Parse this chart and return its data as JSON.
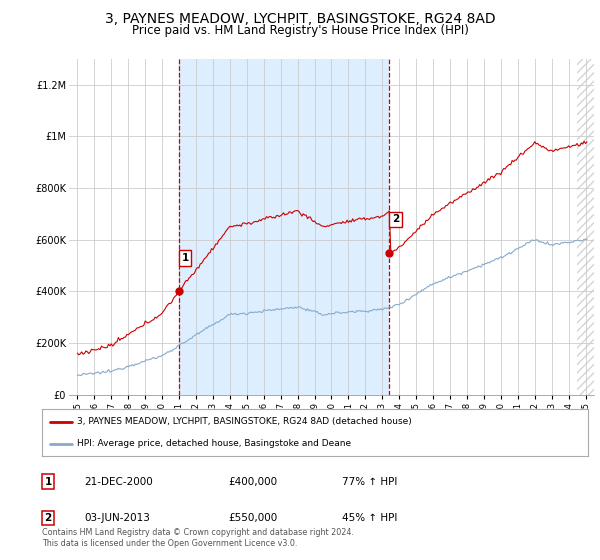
{
  "title": "3, PAYNES MEADOW, LYCHPIT, BASINGSTOKE, RG24 8AD",
  "subtitle": "Price paid vs. HM Land Registry's House Price Index (HPI)",
  "title_fontsize": 10,
  "subtitle_fontsize": 8.5,
  "background_color": "#ffffff",
  "plot_bg_color": "#ffffff",
  "highlight_bg_color": "#ddeeff",
  "grid_color": "#cccccc",
  "red_line_color": "#cc0000",
  "blue_line_color": "#88aacc",
  "ylim": [
    0,
    1300000
  ],
  "yticks": [
    0,
    200000,
    400000,
    600000,
    800000,
    1000000,
    1200000
  ],
  "ytick_labels": [
    "£0",
    "£200K",
    "£400K",
    "£600K",
    "£800K",
    "£1M",
    "£1.2M"
  ],
  "sale1_date_num": 2001.0,
  "sale1_price": 400000,
  "sale1_label": "1",
  "sale2_date_num": 2013.42,
  "sale2_price": 550000,
  "sale2_label": "2",
  "legend_entries": [
    "3, PAYNES MEADOW, LYCHPIT, BASINGSTOKE, RG24 8AD (detached house)",
    "HPI: Average price, detached house, Basingstoke and Deane"
  ],
  "table_entries": [
    {
      "label": "1",
      "date": "21-DEC-2000",
      "price": "£400,000",
      "hpi": "77% ↑ HPI"
    },
    {
      "label": "2",
      "date": "03-JUN-2013",
      "price": "£550,000",
      "hpi": "45% ↑ HPI"
    }
  ],
  "footnote": "Contains HM Land Registry data © Crown copyright and database right 2024.\nThis data is licensed under the Open Government Licence v3.0.",
  "xmin": 1994.5,
  "xmax": 2025.5
}
